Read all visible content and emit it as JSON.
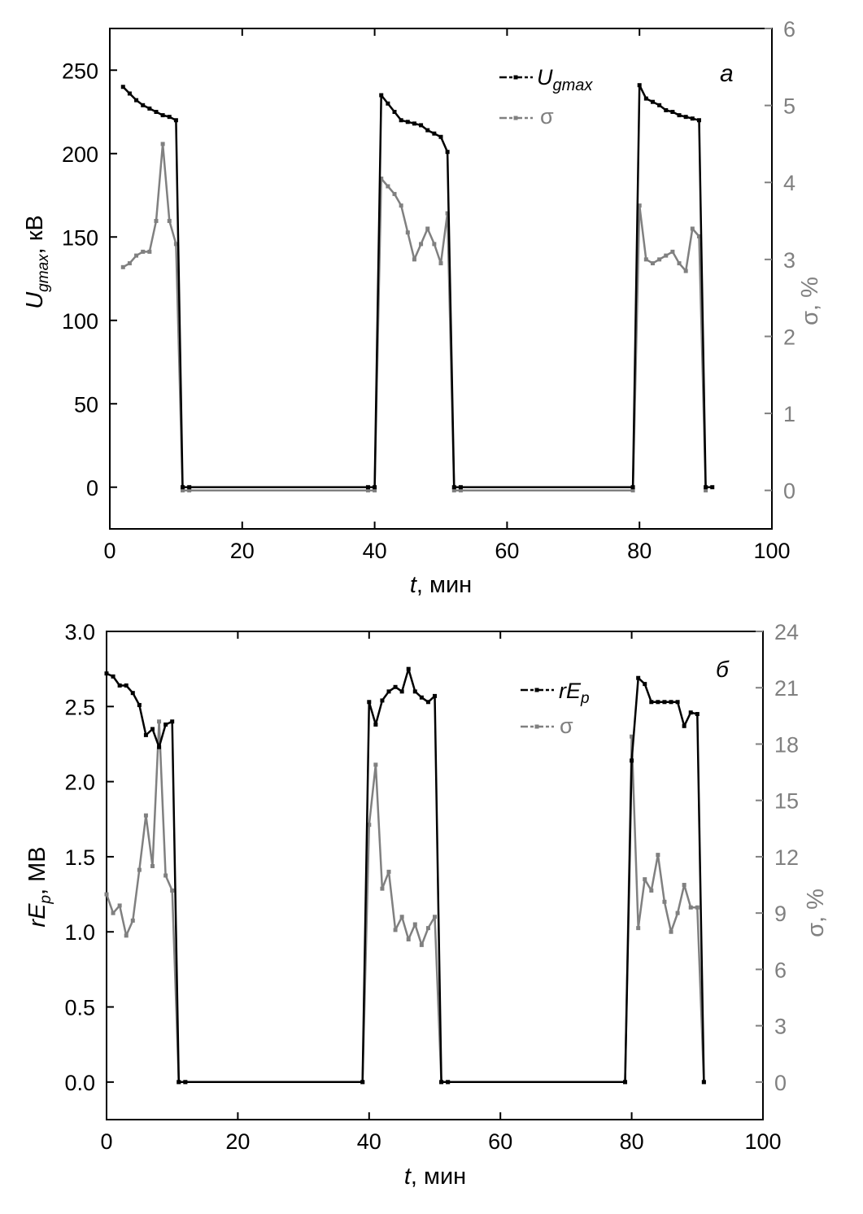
{
  "figure": {
    "panels": [
      {
        "panel_label": "a",
        "xlabel_italic": "t",
        "xlabel_rest": ", мин",
        "ylabel_left_main": "U",
        "ylabel_left_sub": "gmax",
        "ylabel_left_rest": ", кВ",
        "ylabel_right": "σ, %",
        "legend": [
          {
            "main": "U",
            "sub": "gmax"
          },
          {
            "main": "σ",
            "sub": ""
          }
        ]
      },
      {
        "panel_label": "б",
        "xlabel_italic": "t",
        "xlabel_rest": ", мин",
        "ylabel_left_main": "rE",
        "ylabel_left_sub": "p",
        "ylabel_left_rest": ", МВ",
        "ylabel_right": "σ, %",
        "legend": [
          {
            "main": "rE",
            "sub": "p"
          },
          {
            "main": "σ",
            "sub": ""
          }
        ]
      }
    ]
  },
  "chart_data": [
    {
      "type": "line",
      "panel": "a",
      "colors": {
        "primary": "#000000",
        "sigma": "#808080"
      },
      "xlim": [
        0,
        100
      ],
      "xticks": [
        0,
        20,
        40,
        60,
        80,
        100
      ],
      "ylim_left": [
        -25,
        275
      ],
      "yticks_left": [
        0,
        50,
        100,
        150,
        200,
        250
      ],
      "ylim_right": [
        -0.5,
        6
      ],
      "yticks_right": [
        0,
        1,
        2,
        3,
        4,
        5,
        6
      ],
      "series": [
        {
          "name": "Ugmax",
          "axis": "left",
          "color": "#000000",
          "x": [
            2,
            3,
            4,
            5,
            6,
            7,
            8,
            9,
            10,
            11,
            12,
            39,
            40,
            41,
            42,
            43,
            44,
            45,
            46,
            47,
            48,
            49,
            50,
            51,
            52,
            53,
            79,
            80,
            81,
            82,
            83,
            84,
            85,
            86,
            87,
            88,
            89,
            90,
            91
          ],
          "y": [
            240,
            236,
            232,
            229,
            227,
            225,
            223,
            222,
            220,
            0,
            0,
            0,
            0,
            235,
            230,
            225,
            220,
            219,
            218,
            217,
            214,
            212,
            210,
            201,
            0,
            0,
            0,
            241,
            233,
            231,
            229,
            226,
            225,
            223,
            222,
            221,
            220,
            0,
            0
          ]
        },
        {
          "name": "σ",
          "axis": "right",
          "color": "#808080",
          "x": [
            2,
            3,
            4,
            5,
            6,
            7,
            8,
            9,
            10,
            11,
            12,
            39,
            40,
            41,
            42,
            43,
            44,
            45,
            46,
            47,
            48,
            49,
            50,
            51,
            52,
            53,
            79,
            80,
            81,
            82,
            83,
            84,
            85,
            86,
            87,
            88,
            89,
            90
          ],
          "y": [
            2.9,
            2.95,
            3.05,
            3.1,
            3.1,
            3.5,
            4.5,
            3.5,
            3.2,
            0,
            0,
            0,
            0,
            4.05,
            3.95,
            3.85,
            3.7,
            3.35,
            3.0,
            3.2,
            3.4,
            3.2,
            2.95,
            3.6,
            0,
            0,
            0,
            3.7,
            3.0,
            2.95,
            3.0,
            3.05,
            3.1,
            2.95,
            2.85,
            3.4,
            3.3,
            0
          ]
        }
      ]
    },
    {
      "type": "line",
      "panel": "б",
      "colors": {
        "primary": "#000000",
        "sigma": "#808080"
      },
      "xlim": [
        0,
        100
      ],
      "xticks": [
        0,
        20,
        40,
        60,
        80,
        100
      ],
      "ylim_left": [
        -0.25,
        3.0
      ],
      "yticks_left": [
        0.0,
        0.5,
        1.0,
        1.5,
        2.0,
        2.5,
        3.0
      ],
      "ylim_right": [
        -2,
        24
      ],
      "yticks_right": [
        0,
        3,
        6,
        9,
        12,
        15,
        18,
        21,
        24
      ],
      "series": [
        {
          "name": "rEp",
          "axis": "left",
          "color": "#000000",
          "x": [
            0,
            1,
            2,
            3,
            4,
            5,
            6,
            7,
            8,
            9,
            10,
            11,
            12,
            39,
            40,
            41,
            42,
            43,
            44,
            45,
            46,
            47,
            48,
            49,
            50,
            51,
            52,
            79,
            80,
            81,
            82,
            83,
            84,
            85,
            86,
            87,
            88,
            89,
            90,
            91
          ],
          "y": [
            2.72,
            2.7,
            2.64,
            2.64,
            2.59,
            2.51,
            2.31,
            2.35,
            2.23,
            2.38,
            2.4,
            0,
            0,
            0,
            2.53,
            2.38,
            2.54,
            2.6,
            2.63,
            2.6,
            2.75,
            2.6,
            2.56,
            2.53,
            2.57,
            0,
            0,
            0,
            2.14,
            2.69,
            2.65,
            2.53,
            2.53,
            2.53,
            2.53,
            2.53,
            2.37,
            2.46,
            2.45,
            0
          ]
        },
        {
          "name": "σ",
          "axis": "right",
          "color": "#808080",
          "x": [
            0,
            1,
            2,
            3,
            4,
            5,
            6,
            7,
            8,
            9,
            10,
            11,
            12,
            39,
            40,
            41,
            42,
            43,
            44,
            45,
            46,
            47,
            48,
            49,
            50,
            51,
            52,
            79,
            80,
            81,
            82,
            83,
            84,
            85,
            86,
            87,
            88,
            89,
            90,
            91
          ],
          "y": [
            10.0,
            9.0,
            9.4,
            7.8,
            8.6,
            11.3,
            14.2,
            11.5,
            19.2,
            11.0,
            10.2,
            0,
            0,
            0,
            13.7,
            16.9,
            10.3,
            11.2,
            8.1,
            8.8,
            7.6,
            8.4,
            7.3,
            8.2,
            8.8,
            0,
            0,
            0,
            18.4,
            8.2,
            10.8,
            10.2,
            12.1,
            9.6,
            8.0,
            9.0,
            10.5,
            9.3,
            9.3,
            0
          ]
        }
      ]
    }
  ]
}
